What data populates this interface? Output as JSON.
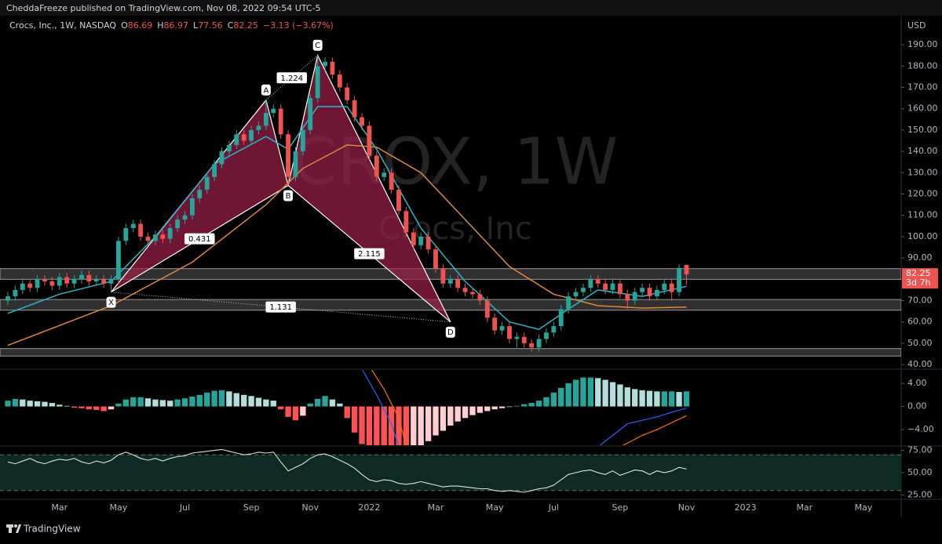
{
  "header": {
    "text": "CheddaFreeze published on TradingView.com, Nov 08, 2022 09:54 UTC-5"
  },
  "footer": {
    "brand": "TradingView"
  },
  "chart_data": [
    {
      "type": "candlestick",
      "title": "Crocs, Inc., 1W, NASDAQ",
      "ohlc_labels": [
        "O",
        "H",
        "L",
        "C"
      ],
      "change_text": "−3.13 (−3.67%)",
      "watermark": "CROX, 1W",
      "watermark_subtitle": "Crocs, Inc",
      "currency": "USD",
      "countdown": "3d 7h",
      "up_color": "#26a69a",
      "down_color": "#ef5350",
      "categories": [
        null,
        null,
        null,
        null,
        null,
        null,
        null,
        "Mar",
        null,
        null,
        null,
        null,
        null,
        null,
        null,
        "May",
        null,
        null,
        null,
        null,
        null,
        null,
        null,
        null,
        "Jul",
        null,
        null,
        null,
        null,
        null,
        null,
        null,
        null,
        "Sep",
        null,
        null,
        null,
        null,
        null,
        null,
        null,
        "Nov",
        null,
        null,
        null,
        null,
        null,
        null,
        null,
        "2022",
        null,
        null,
        null,
        null,
        null,
        null,
        null,
        null,
        "Mar",
        null,
        null,
        null,
        null,
        null,
        null,
        null,
        "May",
        null,
        null,
        null,
        null,
        null,
        null,
        null,
        "Jul",
        null,
        null,
        null,
        null,
        null,
        null,
        null,
        null,
        "Sep",
        null,
        null,
        null,
        null,
        null,
        null,
        null,
        null,
        "Nov",
        null,
        null,
        null,
        null,
        null,
        null,
        null,
        "2023",
        null,
        null,
        null,
        null,
        null,
        null,
        null,
        "Mar",
        null,
        null,
        null,
        null,
        null,
        null,
        null,
        "May"
      ],
      "open": [
        70,
        72,
        75,
        78,
        76,
        80,
        79,
        77,
        81,
        78,
        80,
        82,
        79,
        80,
        78,
        80,
        98,
        104,
        106,
        100,
        98,
        101,
        99,
        104,
        108,
        110,
        118,
        122,
        128,
        134,
        140,
        143,
        148,
        145,
        150,
        152,
        158,
        160,
        148,
        128,
        140,
        150,
        165,
        180,
        182,
        176,
        170,
        164,
        156,
        152,
        138,
        128,
        130,
        122,
        112,
        102,
        96,
        100,
        94,
        85,
        78,
        80,
        76,
        74,
        73,
        70,
        62,
        56,
        58,
        52,
        53,
        50,
        48,
        52,
        55,
        58,
        66,
        72,
        74,
        76,
        80,
        78,
        75,
        78,
        73,
        70,
        74,
        76,
        72,
        75,
        78,
        74,
        86.69,
        null,
        null,
        null,
        null,
        null,
        null,
        null,
        null,
        null,
        null,
        null,
        null,
        null,
        null,
        null,
        null,
        null,
        null,
        null,
        null,
        null,
        null,
        null,
        null
      ],
      "high": [
        74,
        77,
        80,
        80,
        82,
        82,
        81,
        83,
        83,
        82,
        84,
        84,
        82,
        82,
        82,
        100,
        106,
        108,
        108,
        102,
        103,
        103,
        106,
        110,
        112,
        120,
        124,
        130,
        136,
        142,
        145,
        150,
        150,
        152,
        154,
        164,
        162,
        162,
        150,
        142,
        152,
        167,
        185,
        184,
        184,
        178,
        172,
        166,
        158,
        154,
        140,
        132,
        132,
        124,
        114,
        104,
        102,
        102,
        96,
        87,
        82,
        82,
        78,
        76,
        75,
        72,
        64,
        60,
        60,
        55,
        55,
        52,
        54,
        57,
        60,
        68,
        74,
        76,
        78,
        82,
        82,
        80,
        80,
        80,
        75,
        76,
        78,
        78,
        77,
        80,
        80,
        87,
        86.97,
        null,
        null,
        null,
        null,
        null,
        null,
        null,
        null,
        null,
        null,
        null,
        null,
        null,
        null,
        null,
        null,
        null,
        null,
        null,
        null,
        null,
        null,
        null,
        null
      ],
      "low": [
        68,
        70,
        73,
        74,
        74,
        77,
        75,
        75,
        76,
        76,
        78,
        77,
        77,
        76,
        74,
        78,
        96,
        102,
        98,
        96,
        96,
        97,
        97,
        102,
        106,
        108,
        116,
        120,
        126,
        132,
        138,
        141,
        143,
        143,
        148,
        150,
        156,
        146,
        124,
        126,
        138,
        148,
        163,
        178,
        174,
        168,
        162,
        154,
        150,
        136,
        126,
        126,
        120,
        110,
        100,
        94,
        94,
        92,
        83,
        76,
        76,
        74,
        72,
        71,
        68,
        60,
        54,
        54,
        50,
        48,
        48,
        46,
        46,
        50,
        53,
        56,
        64,
        70,
        72,
        74,
        76,
        73,
        73,
        71,
        66,
        68,
        72,
        70,
        70,
        73,
        70,
        72,
        77.56,
        null,
        null,
        null,
        null,
        null,
        null,
        null,
        null,
        null,
        null,
        null,
        null,
        null,
        null,
        null,
        null,
        null,
        null,
        null,
        null,
        null,
        null,
        null,
        null
      ],
      "close": [
        72,
        75,
        78,
        76,
        80,
        79,
        77,
        81,
        78,
        80,
        82,
        79,
        80,
        78,
        80,
        98,
        104,
        106,
        100,
        98,
        101,
        99,
        104,
        108,
        110,
        118,
        122,
        128,
        134,
        140,
        143,
        148,
        145,
        150,
        152,
        158,
        160,
        148,
        128,
        140,
        150,
        165,
        180,
        182,
        176,
        170,
        164,
        156,
        152,
        138,
        128,
        130,
        122,
        112,
        102,
        96,
        100,
        94,
        85,
        78,
        80,
        76,
        74,
        73,
        70,
        62,
        56,
        58,
        52,
        53,
        50,
        48,
        52,
        55,
        58,
        66,
        72,
        74,
        76,
        80,
        78,
        75,
        78,
        73,
        70,
        74,
        76,
        72,
        75,
        78,
        74,
        85.38,
        82.25,
        null,
        null,
        null,
        null,
        null,
        null,
        null,
        null,
        null,
        null,
        null,
        null,
        null,
        null,
        null,
        null,
        null,
        null,
        null,
        null,
        null,
        null,
        null,
        null
      ],
      "ylim": [
        38.2,
        202.9
      ],
      "yticks": [
        {
          "value": 40,
          "label": "40.00"
        },
        {
          "value": 50,
          "label": "50.00"
        },
        {
          "value": 60,
          "label": "60.00"
        },
        {
          "value": 70,
          "label": "70.00"
        },
        {
          "value": 80,
          "label": "80.00"
        },
        {
          "value": 90,
          "label": "90.00"
        },
        {
          "value": 100,
          "label": "100.00"
        },
        {
          "value": 110,
          "label": "110.00"
        },
        {
          "value": 120,
          "label": "120.00"
        },
        {
          "value": 130,
          "label": "130.00"
        },
        {
          "value": 140,
          "label": "140.00"
        },
        {
          "value": 150,
          "label": "150.00"
        },
        {
          "value": 160,
          "label": "160.00"
        },
        {
          "value": 170,
          "label": "170.00"
        },
        {
          "value": 180,
          "label": "180.00"
        },
        {
          "value": 190,
          "label": "190.00"
        }
      ],
      "moving_averages": [
        {
          "color": "#e0873a",
          "x": [
            0,
            14,
            25,
            35,
            40,
            46,
            50,
            56,
            62,
            68,
            74,
            80,
            86,
            92
          ],
          "values": [
            49,
            67.6,
            88,
            115,
            132,
            143,
            142,
            130,
            108,
            86,
            73,
            67.6,
            66.5,
            67
          ]
        },
        {
          "color": "#27b6cc",
          "x": [
            0,
            7,
            14,
            20,
            28,
            35,
            38,
            42,
            46,
            50,
            56,
            62,
            68,
            72,
            76,
            80,
            86,
            92
          ],
          "values": [
            64,
            73,
            79,
            100,
            134,
            147,
            141,
            161,
            161,
            141,
            104,
            79,
            60,
            56.5,
            66,
            75,
            72,
            76.7
          ]
        }
      ],
      "zones": [
        {
          "low": 80,
          "high": 85
        },
        {
          "low": 65.5,
          "high": 70.5
        },
        {
          "low": 44,
          "high": 47.5
        }
      ],
      "zone_color": "#6b6b6b",
      "pattern": {
        "color": "#9c1f4a",
        "points": [
          {
            "label": "X",
            "x": 14,
            "price": 74
          },
          {
            "label": "A",
            "x": 35,
            "price": 164
          },
          {
            "label": "B",
            "x": 38,
            "price": 124
          },
          {
            "label": "C",
            "x": 42,
            "price": 185
          },
          {
            "label": "D",
            "x": 60,
            "price": 60
          }
        ],
        "triangles": [
          "XAB",
          "BCD"
        ],
        "ratios": {
          "XB": "0.431",
          "AC": "1.224",
          "BD": "2.115",
          "XD": "1.131"
        }
      }
    },
    {
      "type": "histogram",
      "values": [
        1.0,
        1.3,
        1.2,
        1.0,
        0.9,
        0.8,
        0.6,
        0.3,
        0.1,
        -0.2,
        -0.3,
        -0.5,
        -0.6,
        -0.8,
        -0.5,
        0.5,
        1.2,
        1.6,
        1.6,
        1.4,
        1.2,
        1.1,
        1.0,
        1.2,
        1.4,
        1.7,
        2.0,
        2.4,
        2.7,
        2.8,
        2.6,
        2.3,
        2.0,
        1.8,
        1.5,
        1.2,
        1.0,
        -0.5,
        -1.8,
        -2.4,
        -1.6,
        0.5,
        1.3,
        1.8,
        1.2,
        0.5,
        -2.0,
        -4.5,
        -6.5,
        -7.5,
        -7.8,
        -8,
        -8,
        -8,
        -8,
        -7.5,
        -6.8,
        -6,
        -5,
        -4.2,
        -3.3,
        -2.6,
        -2.0,
        -1.5,
        -1.1,
        -0.8,
        -0.5,
        -0.3,
        -0.1,
        0.1,
        0.4,
        0.6,
        1.0,
        1.6,
        2.4,
        3.2,
        4.0,
        4.6,
        5.0,
        5.0,
        4.9,
        4.6,
        4.2,
        3.8,
        3.3,
        3.0,
        2.8,
        2.7,
        2.6,
        2.6,
        2.6,
        2.5,
        2.6
      ],
      "colors": {
        "up_rising": "#26a69a",
        "up_falling": "#b2dfdb",
        "down_falling": "#ff5252",
        "down_rising": "#ffcdd2"
      },
      "lines": [
        {
          "color": "#2962ff",
          "x": [
            47,
            48,
            50,
            52,
            53,
            65,
            80,
            82,
            84,
            86,
            88,
            90,
            92
          ],
          "values": [
            8,
            6.5,
            2,
            -3,
            -7,
            null,
            -7,
            -5,
            -3,
            -2.4,
            -1.8,
            -1,
            -0.3
          ]
        },
        {
          "color": "#ff6d00",
          "x": [
            49,
            51,
            53,
            54,
            65,
            83,
            86,
            88,
            90,
            92
          ],
          "values": [
            7,
            3,
            -2,
            -6.8,
            null,
            -7,
            -5,
            -4,
            -2.8,
            -1.6
          ]
        }
      ],
      "ylim": [
        -6.7,
        6.3
      ],
      "yticks": [
        {
          "value": 4,
          "label": "4.00"
        },
        {
          "value": 0,
          "label": "0.00"
        },
        {
          "value": -4,
          "label": "−4.00"
        }
      ]
    },
    {
      "type": "line",
      "color": "#e0e0e0",
      "values": [
        62,
        60,
        63,
        66,
        62,
        60,
        63,
        65,
        64,
        66,
        62,
        60,
        63,
        61,
        64,
        70,
        73,
        70,
        66,
        64,
        66,
        63,
        66,
        68,
        69,
        72,
        73,
        74,
        75,
        76,
        74,
        72,
        70,
        71,
        73,
        72,
        73,
        62,
        52,
        56,
        60,
        66,
        70,
        71,
        68,
        64,
        60,
        55,
        48,
        42,
        40,
        42,
        41,
        38,
        37,
        38,
        40,
        38,
        36,
        34,
        35,
        35,
        34,
        33,
        32,
        32,
        30,
        29,
        30,
        29,
        28,
        30,
        32,
        33,
        36,
        42,
        48,
        50,
        52,
        53,
        50,
        48,
        52,
        47,
        50,
        53,
        52,
        48,
        52,
        50,
        52,
        56,
        54
      ],
      "band": [
        30,
        70
      ],
      "band_color": "#0e2a25",
      "ylim": [
        21,
        79
      ],
      "yticks": [
        {
          "value": 25,
          "label": "25.00"
        },
        {
          "value": 50,
          "label": "50.00"
        },
        {
          "value": 75,
          "label": "75.00"
        }
      ]
    }
  ]
}
